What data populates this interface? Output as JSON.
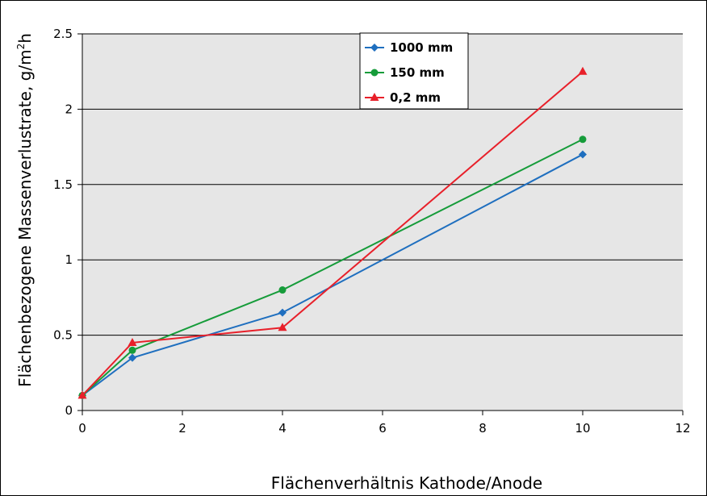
{
  "chart_data": {
    "type": "line",
    "title": "",
    "xlabel": "Flächenverhältnis Kathode/Anode",
    "ylabel_main": "Flächenbezogene Massenverlustrate, g/m",
    "ylabel_sup": "2",
    "ylabel_tail": "h",
    "xlim": [
      0,
      12
    ],
    "ylim": [
      0,
      2.5
    ],
    "x_ticks": [
      "0",
      "2",
      "4",
      "6",
      "8",
      "10",
      "12"
    ],
    "y_ticks": [
      "0",
      "0.5",
      "1",
      "1.5",
      "2",
      "2.5"
    ],
    "grid": "horizontal",
    "legend_position": "top-right",
    "series": [
      {
        "name": "1000 mm",
        "color": "#1f6fbf",
        "marker": "diamond",
        "x": [
          0,
          1,
          4,
          10
        ],
        "y": [
          0.1,
          0.35,
          0.65,
          1.7
        ]
      },
      {
        "name": "150 mm",
        "color": "#169c3a",
        "marker": "circle",
        "x": [
          0,
          1,
          4,
          10
        ],
        "y": [
          0.1,
          0.4,
          0.8,
          1.8
        ]
      },
      {
        "name": "0,2 mm",
        "color": "#e8202a",
        "marker": "triangle",
        "x": [
          0,
          1,
          4,
          10
        ],
        "y": [
          0.1,
          0.45,
          0.55,
          2.25
        ]
      }
    ]
  }
}
